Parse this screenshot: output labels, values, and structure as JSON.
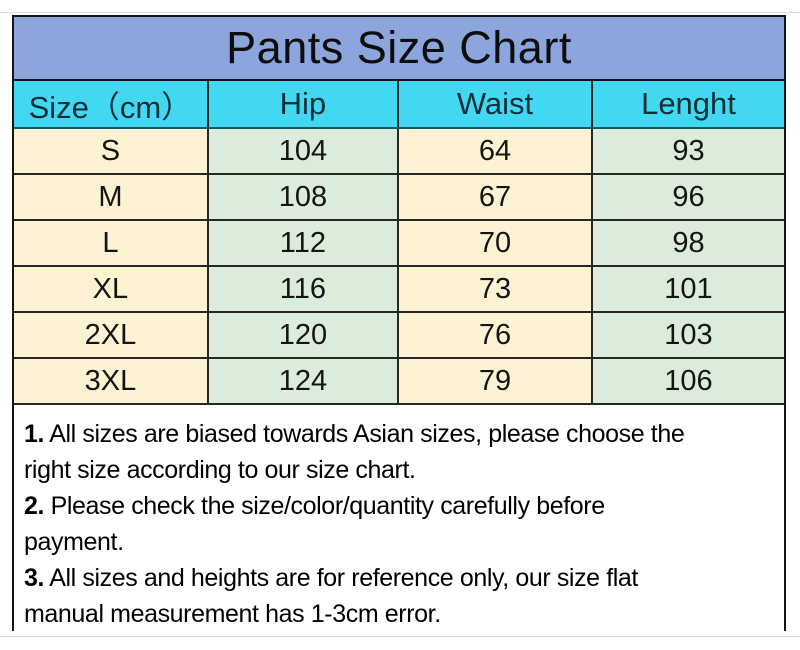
{
  "title": "Pants Size Chart",
  "table": {
    "headers": [
      "Size（cm）",
      "Hip",
      "Waist",
      "Lenght"
    ],
    "rows": [
      [
        "S",
        "104",
        "64",
        "93"
      ],
      [
        "M",
        "108",
        "67",
        "96"
      ],
      [
        "L",
        "112",
        "70",
        "98"
      ],
      [
        "XL",
        "116",
        "73",
        "101"
      ],
      [
        "2XL",
        "120",
        "76",
        "103"
      ],
      [
        "3XL",
        "124",
        "79",
        "106"
      ]
    ]
  },
  "notes": {
    "lines": [
      {
        "bold": "1.",
        "text": " All sizes are biased towards Asian sizes, please choose the"
      },
      {
        "bold": "",
        "text": "right size according to our size chart."
      },
      {
        "bold": "2.",
        "text": " Please check the size/color/quantity carefully before"
      },
      {
        "bold": "",
        "text": "payment."
      },
      {
        "bold": "3.",
        "text": " All sizes and heights are for reference only, our size flat"
      },
      {
        "bold": "",
        "text": "manual measurement has 1-3cm error."
      }
    ]
  },
  "colors": {
    "title_bg": "#8da5dd",
    "header_bg": "#43d8f2",
    "column_cream": "#fdf3d2",
    "column_mint": "#dcecda",
    "border": "#141414"
  }
}
